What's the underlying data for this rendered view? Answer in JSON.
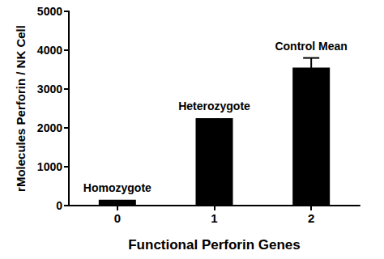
{
  "chart_data": {
    "type": "bar",
    "categories": [
      "0",
      "1",
      "2"
    ],
    "values": [
      150,
      2250,
      3550
    ],
    "errors": [
      null,
      null,
      250
    ],
    "annotations": [
      "Homozygote",
      "Heterozygote",
      "Control Mean"
    ],
    "color": "#000000",
    "x_label": "Functional Perforin Genes",
    "y_label": "rMolecules Perforin / NK Cell",
    "ylim": [
      0,
      5000
    ],
    "yticks": [
      0,
      1000,
      2000,
      3000,
      4000,
      5000
    ],
    "grid": false
  }
}
